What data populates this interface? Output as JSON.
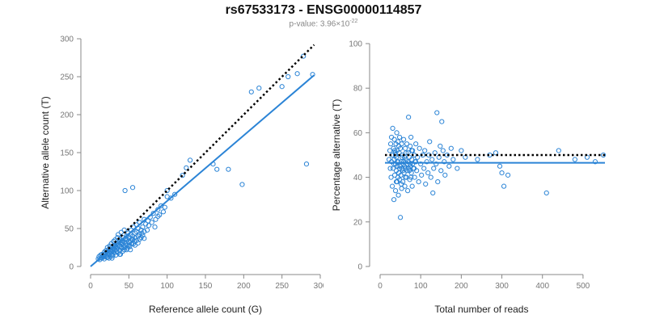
{
  "header": {
    "title": "rs67533173 - ENSG00000114857",
    "pvalue_prefix": "p-value: 3.96×10",
    "pvalue_exponent": "-22"
  },
  "colors": {
    "point": "#2b84d6",
    "fit_line": "#2b84d6",
    "reference_line": "#000000",
    "axis": "#888888",
    "tick_label": "#777777",
    "axis_title": "#222222"
  },
  "chart_data": [
    {
      "type": "scatter",
      "xlabel": "Reference allele count (G)",
      "ylabel": "Alternative allele count (T)",
      "xlim": [
        0,
        300
      ],
      "ylim": [
        0,
        300
      ],
      "xticks": [
        0,
        50,
        100,
        150,
        200,
        250,
        300
      ],
      "yticks": [
        0,
        50,
        100,
        150,
        200,
        250,
        300
      ],
      "grid": false,
      "fit_line": {
        "style": "solid",
        "from": [
          0,
          0
        ],
        "to": [
          292,
          252
        ]
      },
      "reference_line": {
        "style": "dotted",
        "from": [
          15,
          15
        ],
        "to": [
          292,
          292
        ]
      },
      "points": [
        [
          10,
          10
        ],
        [
          11,
          13
        ],
        [
          12,
          9
        ],
        [
          13,
          15
        ],
        [
          14,
          12
        ],
        [
          15,
          16
        ],
        [
          15,
          11
        ],
        [
          16,
          14
        ],
        [
          17,
          13
        ],
        [
          18,
          19
        ],
        [
          18,
          10
        ],
        [
          19,
          16
        ],
        [
          20,
          14
        ],
        [
          20,
          21
        ],
        [
          21,
          12
        ],
        [
          22,
          18
        ],
        [
          22,
          25
        ],
        [
          23,
          15
        ],
        [
          24,
          20
        ],
        [
          24,
          11
        ],
        [
          25,
          17
        ],
        [
          25,
          27
        ],
        [
          26,
          13
        ],
        [
          26,
          22
        ],
        [
          27,
          19
        ],
        [
          27,
          30
        ],
        [
          28,
          16
        ],
        [
          28,
          25
        ],
        [
          29,
          21
        ],
        [
          29,
          14
        ],
        [
          30,
          33
        ],
        [
          30,
          24
        ],
        [
          31,
          18
        ],
        [
          31,
          28
        ],
        [
          32,
          22
        ],
        [
          32,
          35
        ],
        [
          33,
          15
        ],
        [
          33,
          26
        ],
        [
          34,
          20
        ],
        [
          34,
          30
        ],
        [
          35,
          38
        ],
        [
          35,
          24
        ],
        [
          36,
          18
        ],
        [
          36,
          42
        ],
        [
          37,
          28
        ],
        [
          37,
          33
        ],
        [
          38,
          21
        ],
        [
          38,
          26
        ],
        [
          39,
          36
        ],
        [
          39,
          16
        ],
        [
          40,
          30
        ],
        [
          40,
          45
        ],
        [
          41,
          24
        ],
        [
          41,
          34
        ],
        [
          42,
          20
        ],
        [
          42,
          38
        ],
        [
          43,
          28
        ],
        [
          44,
          32
        ],
        [
          44,
          48
        ],
        [
          45,
          25
        ],
        [
          45,
          36
        ],
        [
          46,
          30
        ],
        [
          47,
          40
        ],
        [
          47,
          22
        ],
        [
          48,
          35
        ],
        [
          48,
          28
        ],
        [
          49,
          44
        ],
        [
          50,
          32
        ],
        [
          50,
          38
        ],
        [
          51,
          26
        ],
        [
          52,
          42
        ],
        [
          52,
          34
        ],
        [
          53,
          48
        ],
        [
          54,
          30
        ],
        [
          55,
          40
        ],
        [
          55,
          36
        ],
        [
          56,
          52
        ],
        [
          57,
          33
        ],
        [
          58,
          44
        ],
        [
          58,
          38
        ],
        [
          60,
          46
        ],
        [
          60,
          55
        ],
        [
          62,
          40
        ],
        [
          62,
          50
        ],
        [
          64,
          36
        ],
        [
          64,
          58
        ],
        [
          66,
          48
        ],
        [
          67,
          44
        ],
        [
          68,
          52
        ],
        [
          70,
          62
        ],
        [
          70,
          46
        ],
        [
          72,
          56
        ],
        [
          74,
          48
        ],
        [
          75,
          60
        ],
        [
          76,
          54
        ],
        [
          78,
          65
        ],
        [
          80,
          58
        ],
        [
          82,
          70
        ],
        [
          84,
          52
        ],
        [
          85,
          62
        ],
        [
          88,
          75
        ],
        [
          88,
          66
        ],
        [
          90,
          68
        ],
        [
          92,
          80
        ],
        [
          95,
          72
        ],
        [
          97,
          78
        ],
        [
          100,
          92
        ],
        [
          100,
          100
        ],
        [
          105,
          90
        ],
        [
          110,
          95
        ],
        [
          120,
          120
        ],
        [
          125,
          130
        ],
        [
          130,
          140
        ],
        [
          160,
          135
        ],
        [
          165,
          128
        ],
        [
          180,
          128
        ],
        [
          198,
          108
        ],
        [
          210,
          230
        ],
        [
          220,
          235
        ],
        [
          250,
          237
        ],
        [
          258,
          250
        ],
        [
          270,
          254
        ],
        [
          278,
          277
        ],
        [
          282,
          135
        ],
        [
          290,
          253
        ],
        [
          45,
          100
        ],
        [
          55,
          104
        ],
        [
          18,
          14
        ],
        [
          20,
          18
        ],
        [
          22,
          12
        ],
        [
          24,
          23
        ],
        [
          26,
          20
        ],
        [
          28,
          11
        ],
        [
          30,
          19
        ],
        [
          32,
          27
        ],
        [
          34,
          23
        ],
        [
          36,
          31
        ],
        [
          38,
          16
        ],
        [
          40,
          26
        ],
        [
          42,
          31
        ],
        [
          44,
          22
        ],
        [
          46,
          37
        ],
        [
          48,
          24
        ],
        [
          50,
          28
        ],
        [
          52,
          22
        ],
        [
          54,
          36
        ],
        [
          56,
          30
        ],
        [
          58,
          28
        ],
        [
          60,
          34
        ],
        [
          62,
          31
        ],
        [
          64,
          42
        ],
        [
          66,
          38
        ],
        [
          68,
          41
        ],
        [
          70,
          37
        ]
      ]
    },
    {
      "type": "scatter",
      "xlabel": "Total number of reads",
      "ylabel": "Percentage alternative (T)",
      "xlim": [
        0,
        550
      ],
      "ylim": [
        0,
        100
      ],
      "xticks": [
        0,
        100,
        200,
        300,
        400,
        500
      ],
      "yticks": [
        0,
        20,
        40,
        60,
        80,
        100
      ],
      "grid": false,
      "fit_line": {
        "style": "solid",
        "y": 46.5
      },
      "reference_line": {
        "style": "dotted",
        "y": 50
      },
      "points": [
        [
          22,
          48
        ],
        [
          24,
          52
        ],
        [
          25,
          44
        ],
        [
          26,
          55
        ],
        [
          27,
          40
        ],
        [
          28,
          58
        ],
        [
          28,
          47
        ],
        [
          30,
          36
        ],
        [
          30,
          50
        ],
        [
          31,
          62
        ],
        [
          32,
          44
        ],
        [
          33,
          53
        ],
        [
          34,
          30
        ],
        [
          35,
          48
        ],
        [
          35,
          57
        ],
        [
          36,
          41
        ],
        [
          37,
          51
        ],
        [
          38,
          46
        ],
        [
          38,
          34
        ],
        [
          39,
          55
        ],
        [
          40,
          43
        ],
        [
          40,
          49
        ],
        [
          41,
          60
        ],
        [
          42,
          38
        ],
        [
          42,
          52
        ],
        [
          43,
          45
        ],
        [
          44,
          56
        ],
        [
          45,
          32
        ],
        [
          45,
          47
        ],
        [
          46,
          42
        ],
        [
          47,
          51
        ],
        [
          48,
          39
        ],
        [
          48,
          58
        ],
        [
          49,
          45
        ],
        [
          50,
          22
        ],
        [
          50,
          53
        ],
        [
          51,
          41
        ],
        [
          52,
          47
        ],
        [
          53,
          35
        ],
        [
          53,
          55
        ],
        [
          54,
          44
        ],
        [
          55,
          50
        ],
        [
          56,
          38
        ],
        [
          57,
          46
        ],
        [
          58,
          57
        ],
        [
          59,
          42
        ],
        [
          60,
          49
        ],
        [
          61,
          36
        ],
        [
          62,
          53
        ],
        [
          63,
          44
        ],
        [
          64,
          48
        ],
        [
          65,
          40
        ],
        [
          66,
          55
        ],
        [
          67,
          46
        ],
        [
          68,
          34
        ],
        [
          69,
          51
        ],
        [
          70,
          67
        ],
        [
          70,
          44
        ],
        [
          72,
          49
        ],
        [
          73,
          39
        ],
        [
          74,
          54
        ],
        [
          75,
          45
        ],
        [
          76,
          58
        ],
        [
          77,
          42
        ],
        [
          78,
          48
        ],
        [
          79,
          36
        ],
        [
          80,
          52
        ],
        [
          82,
          44
        ],
        [
          84,
          50
        ],
        [
          85,
          40
        ],
        [
          86,
          47
        ],
        [
          88,
          55
        ],
        [
          90,
          43
        ],
        [
          92,
          49
        ],
        [
          95,
          38
        ],
        [
          97,
          53
        ],
        [
          100,
          46
        ],
        [
          102,
          41
        ],
        [
          105,
          50
        ],
        [
          108,
          44
        ],
        [
          110,
          52
        ],
        [
          112,
          37
        ],
        [
          115,
          47
        ],
        [
          118,
          42
        ],
        [
          120,
          50
        ],
        [
          122,
          56
        ],
        [
          125,
          40
        ],
        [
          128,
          48
        ],
        [
          130,
          33
        ],
        [
          132,
          44
        ],
        [
          135,
          51
        ],
        [
          138,
          46
        ],
        [
          140,
          69
        ],
        [
          142,
          38
        ],
        [
          145,
          49
        ],
        [
          148,
          54
        ],
        [
          150,
          43
        ],
        [
          152,
          65
        ],
        [
          155,
          52
        ],
        [
          158,
          47
        ],
        [
          160,
          41
        ],
        [
          165,
          50
        ],
        [
          170,
          45
        ],
        [
          175,
          53
        ],
        [
          180,
          48
        ],
        [
          190,
          44
        ],
        [
          200,
          52
        ],
        [
          210,
          49
        ],
        [
          240,
          48
        ],
        [
          270,
          50
        ],
        [
          285,
          51
        ],
        [
          295,
          45
        ],
        [
          300,
          42
        ],
        [
          305,
          36
        ],
        [
          315,
          41
        ],
        [
          410,
          33
        ],
        [
          440,
          52
        ],
        [
          480,
          48
        ],
        [
          510,
          49
        ],
        [
          530,
          47
        ],
        [
          550,
          50
        ],
        [
          34,
          46
        ],
        [
          36,
          52
        ],
        [
          38,
          50
        ],
        [
          40,
          38
        ],
        [
          42,
          47
        ],
        [
          44,
          40
        ],
        [
          46,
          54
        ],
        [
          48,
          44
        ],
        [
          52,
          37
        ],
        [
          54,
          49
        ],
        [
          56,
          43
        ],
        [
          58,
          47
        ],
        [
          60,
          45
        ],
        [
          62,
          40
        ],
        [
          64,
          51
        ],
        [
          66,
          43
        ],
        [
          68,
          47
        ],
        [
          72,
          43
        ],
        [
          74,
          46
        ],
        [
          76,
          40
        ],
        [
          78,
          52
        ],
        [
          80,
          46
        ],
        [
          84,
          44
        ],
        [
          88,
          47
        ]
      ]
    }
  ]
}
